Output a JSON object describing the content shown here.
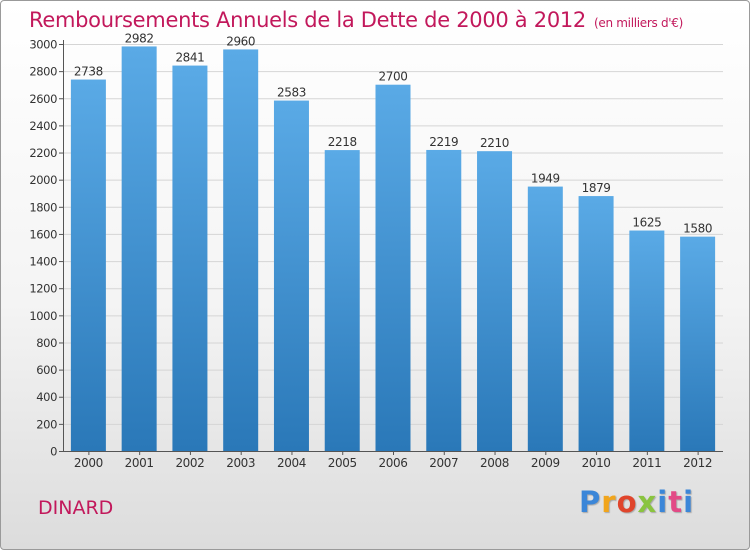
{
  "chart_data": {
    "type": "bar",
    "title": "Remboursements Annuels de la Dette de 2000 à 2012",
    "unit": "(en milliers d'€)",
    "categories": [
      "2000",
      "2001",
      "2002",
      "2003",
      "2004",
      "2005",
      "2006",
      "2007",
      "2008",
      "2009",
      "2010",
      "2011",
      "2012"
    ],
    "values": [
      2738,
      2982,
      2841,
      2960,
      2583,
      2218,
      2700,
      2219,
      2210,
      1949,
      1879,
      1625,
      1580
    ],
    "ylim": [
      0,
      3000
    ],
    "yticks": [
      0,
      200,
      400,
      600,
      800,
      1000,
      1200,
      1400,
      1600,
      1800,
      2000,
      2200,
      2400,
      2600,
      2800,
      3000
    ],
    "grid": true,
    "colors": {
      "bar_top": "#5aaae6",
      "bar_bottom": "#2a78b8",
      "title": "#c2185b",
      "grid": "#d5d5d5"
    }
  },
  "footer": {
    "city": "DINARD",
    "logo_text": "Proxiti"
  }
}
